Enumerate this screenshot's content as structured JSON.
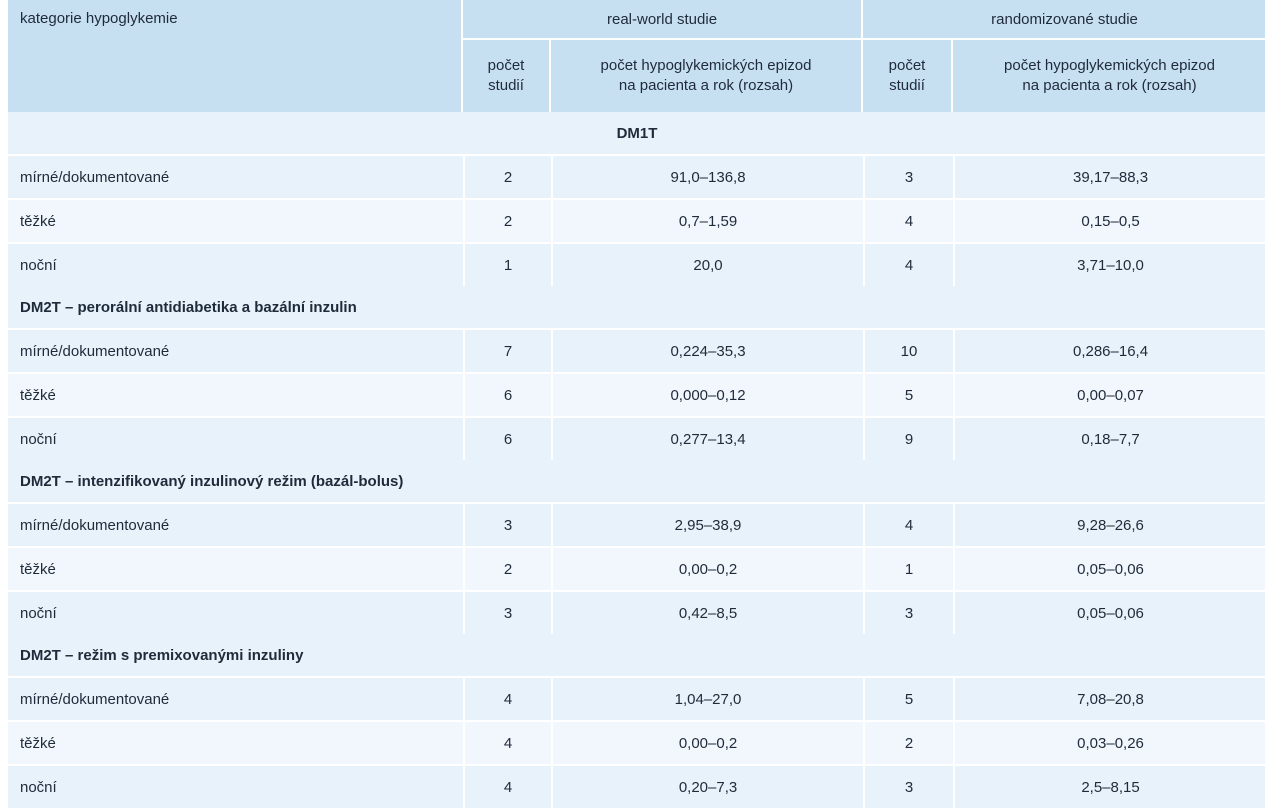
{
  "header": {
    "category_label": "kategorie hypoglykemie",
    "real_world_label": "real-world studie",
    "randomized_label": "randomizované studie",
    "count_label_line1": "počet",
    "count_label_line2": "studií",
    "episodes_label_line1": "počet hypoglykemických epizod",
    "episodes_label_line2": "na pacienta a rok (rozsah)"
  },
  "sections": [
    {
      "title": "DM1T",
      "align": "center",
      "rows": [
        {
          "category": "mírné/dokumentované",
          "rw_count": "2",
          "rw_range": "91,0–136,8",
          "rnd_count": "3",
          "rnd_range": "39,17–88,3"
        },
        {
          "category": "těžké",
          "rw_count": "2",
          "rw_range": "0,7–1,59",
          "rnd_count": "4",
          "rnd_range": "0,15–0,5"
        },
        {
          "category": "noční",
          "rw_count": "1",
          "rw_range": "20,0",
          "rnd_count": "4",
          "rnd_range": "3,71–10,0"
        }
      ]
    },
    {
      "title": "DM2T – perorální antidiabetika a bazální inzulin",
      "align": "left",
      "rows": [
        {
          "category": "mírné/dokumentované",
          "rw_count": "7",
          "rw_range": "0,224–35,3",
          "rnd_count": "10",
          "rnd_range": "0,286–16,4"
        },
        {
          "category": "těžké",
          "rw_count": "6",
          "rw_range": "0,000–0,12",
          "rnd_count": "5",
          "rnd_range": "0,00–0,07"
        },
        {
          "category": "noční",
          "rw_count": "6",
          "rw_range": "0,277–13,4",
          "rnd_count": "9",
          "rnd_range": "0,18–7,7"
        }
      ]
    },
    {
      "title": "DM2T – intenzifikovaný inzulinový režim (bazál-bolus)",
      "align": "left",
      "rows": [
        {
          "category": "mírné/dokumentované",
          "rw_count": "3",
          "rw_range": "2,95–38,9",
          "rnd_count": "4",
          "rnd_range": "9,28–26,6"
        },
        {
          "category": "těžké",
          "rw_count": "2",
          "rw_range": "0,00–0,2",
          "rnd_count": "1",
          "rnd_range": "0,05–0,06"
        },
        {
          "category": "noční",
          "rw_count": "3",
          "rw_range": "0,42–8,5",
          "rnd_count": "3",
          "rnd_range": "0,05–0,06"
        }
      ]
    },
    {
      "title": "DM2T – režim s premixovanými inzuliny",
      "align": "left",
      "rows": [
        {
          "category": "mírné/dokumentované",
          "rw_count": "4",
          "rw_range": "1,04–27,0",
          "rnd_count": "5",
          "rnd_range": "7,08–20,8"
        },
        {
          "category": "těžké",
          "rw_count": "4",
          "rw_range": "0,00–0,2",
          "rnd_count": "2",
          "rnd_range": "0,03–0,26"
        },
        {
          "category": "noční",
          "rw_count": "4",
          "rw_range": "0,20–7,3",
          "rnd_count": "3",
          "rnd_range": "2,5–8,15"
        }
      ]
    }
  ],
  "colors": {
    "header_bg": "#c6e0f2",
    "row_bg": "#e8f2fa",
    "text": "#1f2a3a"
  }
}
